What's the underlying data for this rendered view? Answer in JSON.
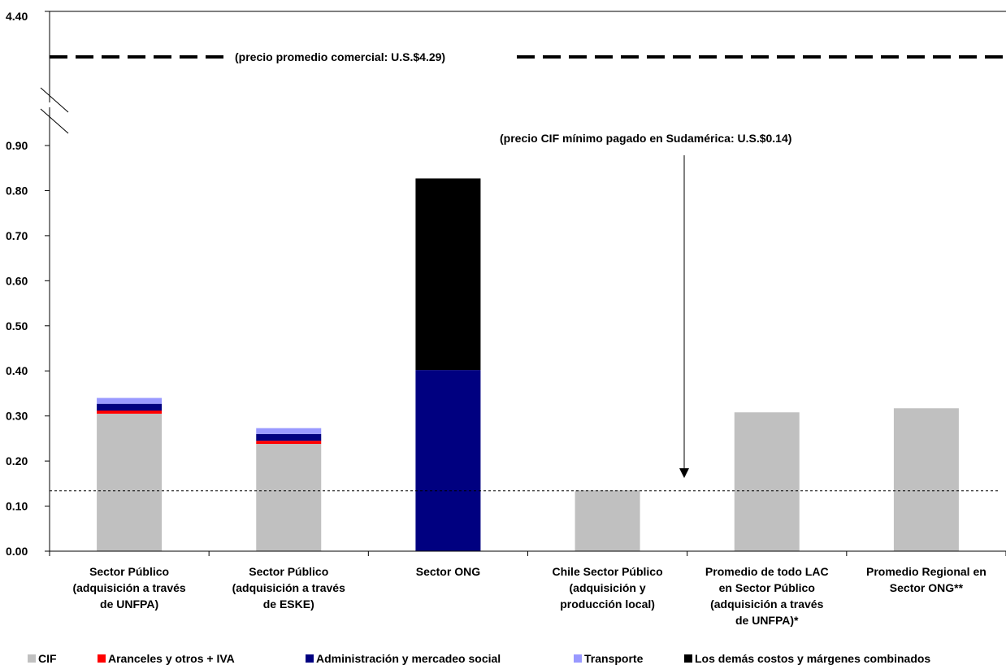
{
  "chart_data": {
    "type": "bar",
    "stacked": true,
    "categories": [
      [
        "Sector Público",
        "(adquisición a través",
        "de UNFPA)"
      ],
      [
        "Sector Público",
        "(adquisición a través",
        "de ESKE)"
      ],
      [
        "Sector ONG"
      ],
      [
        "Chile Sector Público",
        "(adquisición y",
        "producción local)"
      ],
      [
        "Promedio de todo LAC",
        "en Sector Público",
        "(adquisición a través",
        "de UNFPA)*"
      ],
      [
        "Promedio Regional en",
        "Sector ONG**"
      ]
    ],
    "series": [
      {
        "name": "CIF",
        "color": "#c0c0c0",
        "values": [
          0.305,
          0.238,
          0,
          0.135,
          0.308,
          0.317
        ]
      },
      {
        "name": "Aranceles y otros + IVA",
        "color": "#ff0000",
        "values": [
          0.007,
          0.007,
          0,
          0,
          0,
          0
        ]
      },
      {
        "name": "Administración y mercadeo social",
        "color": "#000080",
        "values": [
          0.015,
          0.015,
          0.402,
          0,
          0,
          0
        ]
      },
      {
        "name": "Transporte",
        "color": "#9999ff",
        "values": [
          0.013,
          0.013,
          0,
          0,
          0,
          0
        ]
      },
      {
        "name": "Los demás costos y márgenes combinados",
        "color": "#000000",
        "values": [
          0,
          0,
          0.425,
          0,
          0,
          0
        ]
      }
    ],
    "ylim": [
      0,
      0.9
    ],
    "yticks": [
      "0.00",
      "0.10",
      "0.20",
      "0.30",
      "0.40",
      "0.50",
      "0.60",
      "0.70",
      "0.80",
      "0.90"
    ],
    "axis_break": {
      "top_label": "4.40"
    },
    "reference_lines": [
      {
        "label": "(precio promedio comercial: U.S.$4.29)",
        "value": 4.29,
        "style": "dashed-thick"
      },
      {
        "label": "(precio CIF mínimo pagado en Sudamérica: U.S.$0.14)",
        "value": 0.134,
        "style": "dotted-thin"
      }
    ],
    "legend_position": "bottom",
    "grid": false
  }
}
